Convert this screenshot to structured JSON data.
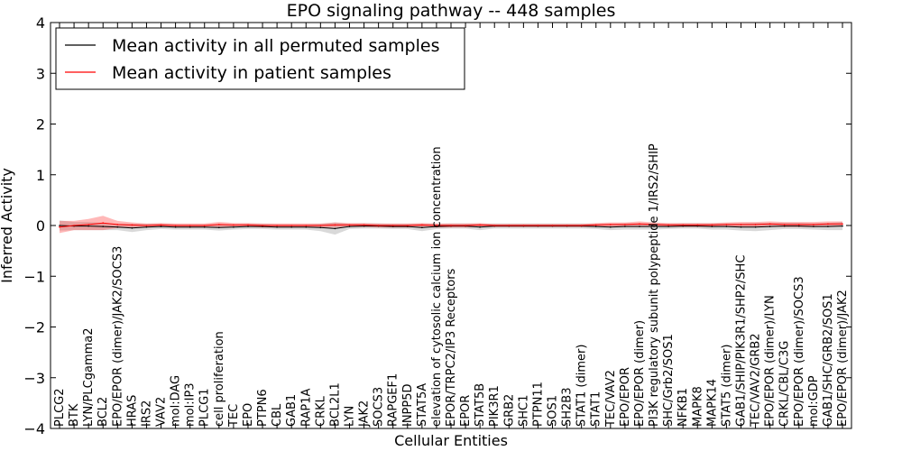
{
  "chart_data": {
    "type": "line",
    "title": "EPO signaling pathway -- 448 samples",
    "xlabel": "Cellular Entities",
    "ylabel": "Inferred Activity",
    "ylim": [
      -4,
      4
    ],
    "yticks": [
      -4,
      -3,
      -2,
      -1,
      0,
      1,
      2,
      3,
      4
    ],
    "ytick_labels": [
      "−4",
      "−3",
      "−2",
      "−1",
      "0",
      "1",
      "2",
      "3",
      "4"
    ],
    "legend_location": "upper-left",
    "categories": [
      "PLCG2",
      "BTK",
      "LYN/PLCgamma2",
      "BCL2",
      "EPO/EPOR (dimer)/JAK2/SOCS3",
      "HRAS",
      "IRS2",
      "VAV2",
      "mol:DAG",
      "mol:IP3",
      "PLCG1",
      "cell proliferation",
      "TEC",
      "EPO",
      "PTPN6",
      "CBL",
      "GAB1",
      "RAP1A",
      "CRKL",
      "BCL2L1",
      "LYN",
      "JAK2",
      "SOCS3",
      "RAPGEF1",
      "INPP5D",
      "STAT5A",
      "elevation of cytosolic calcium ion concentration",
      "EPOR/TRPC2/IP3 Receptors",
      "EPOR",
      "STAT5B",
      "PIK3R1",
      "GRB2",
      "SHC1",
      "PTPN11",
      "SOS1",
      "SH2B3",
      "STAT1 (dimer)",
      "STAT1",
      "TEC/VAV2",
      "EPO/EPOR",
      "EPO/EPOR (dimer)",
      "PI3K regulatory subunit polypeptide 1/IRS2/SHIP",
      "SHC/Grb2/SOS1",
      "NFKB1",
      "MAPK8",
      "MAPK14",
      "STAT5 (dimer)",
      "GAB1/SHIP/PIK3R1/SHP2/SHC",
      "TEC/VAV2/GRB2",
      "EPO/EPOR (dimer)/LYN",
      "CRKL/CBL/C3G",
      "EPO/EPOR (dimer)/SOCS3",
      "mol:GDP",
      "GAB1/SHC/GRB2/SOS1",
      "EPO/EPOR (dimer)/JAK2"
    ],
    "series": [
      {
        "name": "Mean activity in all permuted samples",
        "color": "#000000",
        "band_color": "#808080",
        "values": [
          0.0,
          -0.01,
          -0.01,
          -0.02,
          -0.03,
          -0.05,
          -0.03,
          -0.02,
          -0.03,
          -0.03,
          -0.03,
          -0.04,
          -0.03,
          -0.02,
          -0.02,
          -0.03,
          -0.03,
          -0.03,
          -0.04,
          -0.06,
          -0.02,
          -0.01,
          -0.01,
          -0.02,
          -0.02,
          -0.04,
          -0.02,
          -0.01,
          -0.01,
          -0.03,
          -0.01,
          -0.01,
          -0.01,
          -0.01,
          -0.01,
          -0.01,
          -0.01,
          -0.02,
          -0.03,
          -0.02,
          -0.02,
          -0.02,
          -0.02,
          -0.01,
          -0.01,
          -0.02,
          -0.02,
          -0.03,
          -0.03,
          -0.02,
          -0.01,
          -0.01,
          -0.02,
          -0.02,
          -0.01
        ],
        "band": [
          0.1,
          0.08,
          0.08,
          0.07,
          0.06,
          0.08,
          0.06,
          0.05,
          0.05,
          0.05,
          0.05,
          0.06,
          0.05,
          0.05,
          0.05,
          0.05,
          0.05,
          0.05,
          0.07,
          0.12,
          0.05,
          0.05,
          0.05,
          0.05,
          0.05,
          0.07,
          0.05,
          0.05,
          0.05,
          0.06,
          0.05,
          0.05,
          0.05,
          0.05,
          0.05,
          0.05,
          0.05,
          0.05,
          0.06,
          0.06,
          0.06,
          0.06,
          0.05,
          0.05,
          0.05,
          0.06,
          0.06,
          0.07,
          0.08,
          0.07,
          0.06,
          0.06,
          0.06,
          0.07,
          0.08
        ]
      },
      {
        "name": "Mean activity in patient samples",
        "color": "#ff0000",
        "band_color": "#ff3333",
        "values": [
          -0.03,
          0.0,
          0.02,
          0.05,
          0.02,
          0.01,
          0.0,
          0.01,
          0.0,
          0.0,
          0.0,
          0.02,
          0.01,
          0.01,
          0.0,
          0.0,
          0.0,
          0.0,
          0.0,
          0.01,
          0.01,
          0.01,
          0.0,
          0.0,
          0.0,
          0.01,
          0.0,
          0.0,
          0.0,
          0.01,
          0.0,
          0.0,
          0.0,
          0.0,
          0.0,
          0.0,
          0.0,
          0.01,
          0.02,
          0.02,
          0.03,
          0.02,
          0.01,
          0.01,
          0.01,
          0.01,
          0.02,
          0.02,
          0.02,
          0.03,
          0.02,
          0.02,
          0.02,
          0.03,
          0.03
        ],
        "band": [
          0.12,
          0.09,
          0.11,
          0.14,
          0.07,
          0.05,
          0.04,
          0.04,
          0.04,
          0.04,
          0.04,
          0.05,
          0.04,
          0.04,
          0.04,
          0.04,
          0.04,
          0.04,
          0.04,
          0.05,
          0.04,
          0.04,
          0.04,
          0.04,
          0.04,
          0.04,
          0.04,
          0.04,
          0.04,
          0.04,
          0.03,
          0.03,
          0.03,
          0.03,
          0.03,
          0.03,
          0.03,
          0.04,
          0.04,
          0.04,
          0.05,
          0.04,
          0.04,
          0.04,
          0.04,
          0.04,
          0.04,
          0.05,
          0.05,
          0.05,
          0.05,
          0.05,
          0.05,
          0.05,
          0.05
        ]
      }
    ]
  }
}
